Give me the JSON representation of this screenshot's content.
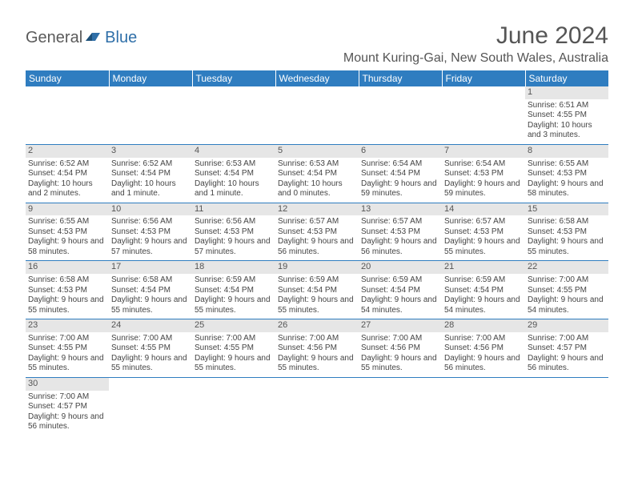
{
  "logo": {
    "general": "General",
    "blue": "Blue"
  },
  "title": "June 2024",
  "location": "Mount Kuring-Gai, New South Wales, Australia",
  "colors": {
    "header_bg": "#2f7dc0",
    "header_text": "#ffffff",
    "daynum_bg": "#e6e6e6",
    "border": "#2f7dc0",
    "text": "#444444",
    "logo_blue": "#2f6fa8"
  },
  "day_headers": [
    "Sunday",
    "Monday",
    "Tuesday",
    "Wednesday",
    "Thursday",
    "Friday",
    "Saturday"
  ],
  "weeks": [
    [
      null,
      null,
      null,
      null,
      null,
      null,
      {
        "n": "1",
        "sr": "6:51 AM",
        "ss": "4:55 PM",
        "dl": "10 hours and 3 minutes."
      }
    ],
    [
      {
        "n": "2",
        "sr": "6:52 AM",
        "ss": "4:54 PM",
        "dl": "10 hours and 2 minutes."
      },
      {
        "n": "3",
        "sr": "6:52 AM",
        "ss": "4:54 PM",
        "dl": "10 hours and 1 minute."
      },
      {
        "n": "4",
        "sr": "6:53 AM",
        "ss": "4:54 PM",
        "dl": "10 hours and 1 minute."
      },
      {
        "n": "5",
        "sr": "6:53 AM",
        "ss": "4:54 PM",
        "dl": "10 hours and 0 minutes."
      },
      {
        "n": "6",
        "sr": "6:54 AM",
        "ss": "4:54 PM",
        "dl": "9 hours and 59 minutes."
      },
      {
        "n": "7",
        "sr": "6:54 AM",
        "ss": "4:53 PM",
        "dl": "9 hours and 59 minutes."
      },
      {
        "n": "8",
        "sr": "6:55 AM",
        "ss": "4:53 PM",
        "dl": "9 hours and 58 minutes."
      }
    ],
    [
      {
        "n": "9",
        "sr": "6:55 AM",
        "ss": "4:53 PM",
        "dl": "9 hours and 58 minutes."
      },
      {
        "n": "10",
        "sr": "6:56 AM",
        "ss": "4:53 PM",
        "dl": "9 hours and 57 minutes."
      },
      {
        "n": "11",
        "sr": "6:56 AM",
        "ss": "4:53 PM",
        "dl": "9 hours and 57 minutes."
      },
      {
        "n": "12",
        "sr": "6:57 AM",
        "ss": "4:53 PM",
        "dl": "9 hours and 56 minutes."
      },
      {
        "n": "13",
        "sr": "6:57 AM",
        "ss": "4:53 PM",
        "dl": "9 hours and 56 minutes."
      },
      {
        "n": "14",
        "sr": "6:57 AM",
        "ss": "4:53 PM",
        "dl": "9 hours and 55 minutes."
      },
      {
        "n": "15",
        "sr": "6:58 AM",
        "ss": "4:53 PM",
        "dl": "9 hours and 55 minutes."
      }
    ],
    [
      {
        "n": "16",
        "sr": "6:58 AM",
        "ss": "4:53 PM",
        "dl": "9 hours and 55 minutes."
      },
      {
        "n": "17",
        "sr": "6:58 AM",
        "ss": "4:54 PM",
        "dl": "9 hours and 55 minutes."
      },
      {
        "n": "18",
        "sr": "6:59 AM",
        "ss": "4:54 PM",
        "dl": "9 hours and 55 minutes."
      },
      {
        "n": "19",
        "sr": "6:59 AM",
        "ss": "4:54 PM",
        "dl": "9 hours and 55 minutes."
      },
      {
        "n": "20",
        "sr": "6:59 AM",
        "ss": "4:54 PM",
        "dl": "9 hours and 54 minutes."
      },
      {
        "n": "21",
        "sr": "6:59 AM",
        "ss": "4:54 PM",
        "dl": "9 hours and 54 minutes."
      },
      {
        "n": "22",
        "sr": "7:00 AM",
        "ss": "4:55 PM",
        "dl": "9 hours and 54 minutes."
      }
    ],
    [
      {
        "n": "23",
        "sr": "7:00 AM",
        "ss": "4:55 PM",
        "dl": "9 hours and 55 minutes."
      },
      {
        "n": "24",
        "sr": "7:00 AM",
        "ss": "4:55 PM",
        "dl": "9 hours and 55 minutes."
      },
      {
        "n": "25",
        "sr": "7:00 AM",
        "ss": "4:55 PM",
        "dl": "9 hours and 55 minutes."
      },
      {
        "n": "26",
        "sr": "7:00 AM",
        "ss": "4:56 PM",
        "dl": "9 hours and 55 minutes."
      },
      {
        "n": "27",
        "sr": "7:00 AM",
        "ss": "4:56 PM",
        "dl": "9 hours and 55 minutes."
      },
      {
        "n": "28",
        "sr": "7:00 AM",
        "ss": "4:56 PM",
        "dl": "9 hours and 56 minutes."
      },
      {
        "n": "29",
        "sr": "7:00 AM",
        "ss": "4:57 PM",
        "dl": "9 hours and 56 minutes."
      }
    ],
    [
      {
        "n": "30",
        "sr": "7:00 AM",
        "ss": "4:57 PM",
        "dl": "9 hours and 56 minutes."
      },
      null,
      null,
      null,
      null,
      null,
      null
    ]
  ],
  "labels": {
    "sunrise": "Sunrise:",
    "sunset": "Sunset:",
    "daylight": "Daylight:"
  }
}
